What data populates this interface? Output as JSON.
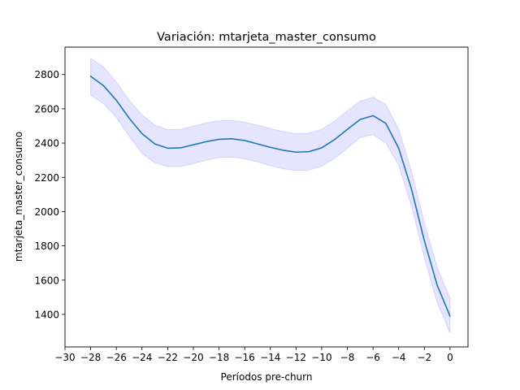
{
  "chart_data": {
    "type": "line",
    "title": "Variación: mtarjeta_master_consumo",
    "xlabel": "Períodos pre-churn",
    "ylabel": "mtarjeta_master_consumo",
    "xlim": [
      -30,
      1.4
    ],
    "ylim": [
      1210,
      2960
    ],
    "xticks": [
      -30,
      -28,
      -26,
      -24,
      -22,
      -20,
      -18,
      -16,
      -14,
      -12,
      -10,
      -8,
      -6,
      -4,
      -2,
      0
    ],
    "xtick_labels": [
      "−30",
      "−28",
      "−26",
      "−24",
      "−22",
      "−20",
      "−18",
      "−16",
      "−14",
      "−12",
      "−10",
      "−8",
      "−6",
      "−4",
      "−2",
      "0"
    ],
    "yticks": [
      1400,
      1600,
      1800,
      2000,
      2200,
      2400,
      2600,
      2800
    ],
    "yticks_labels": [
      "1400",
      "1600",
      "1800",
      "2000",
      "2200",
      "2400",
      "2600",
      "2800"
    ],
    "grid": false,
    "series": [
      {
        "color": "#1f77b4",
        "band_color": "#0000ff",
        "x": [
          -28,
          -27,
          -26,
          -25,
          -24,
          -23,
          -22,
          -21,
          -20,
          -19,
          -18,
          -17,
          -16,
          -15,
          -14,
          -13,
          -12,
          -11,
          -10,
          -9,
          -8,
          -7,
          -6,
          -5,
          -4,
          -3,
          -2,
          -1,
          0
        ],
        "values": [
          2790,
          2735,
          2650,
          2545,
          2455,
          2395,
          2370,
          2372,
          2390,
          2408,
          2422,
          2425,
          2415,
          2395,
          2375,
          2358,
          2347,
          2350,
          2372,
          2420,
          2480,
          2538,
          2560,
          2515,
          2370,
          2130,
          1830,
          1570,
          1390
        ],
        "lower": [
          2680,
          2630,
          2550,
          2440,
          2340,
          2285,
          2262,
          2262,
          2280,
          2300,
          2315,
          2318,
          2308,
          2290,
          2268,
          2250,
          2240,
          2242,
          2265,
          2310,
          2370,
          2432,
          2450,
          2400,
          2270,
          2030,
          1730,
          1470,
          1290
        ],
        "upper": [
          2895,
          2845,
          2755,
          2650,
          2565,
          2505,
          2478,
          2480,
          2498,
          2518,
          2530,
          2532,
          2522,
          2505,
          2485,
          2467,
          2455,
          2458,
          2480,
          2528,
          2588,
          2645,
          2668,
          2625,
          2480,
          2235,
          1935,
          1675,
          1495
        ]
      }
    ]
  }
}
